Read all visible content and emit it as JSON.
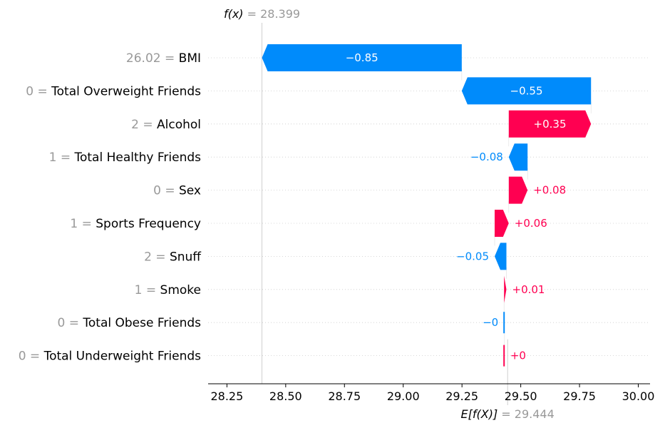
{
  "chart_data": {
    "type": "waterfall",
    "features": [
      {
        "value_label": "26.02",
        "name": "BMI",
        "contribution": -0.85,
        "label": "−0.85"
      },
      {
        "value_label": "0",
        "name": "Total Overweight Friends",
        "contribution": -0.55,
        "label": "−0.55"
      },
      {
        "value_label": "2",
        "name": "Alcohol",
        "contribution": 0.35,
        "label": "+0.35"
      },
      {
        "value_label": "1",
        "name": "Total Healthy Friends",
        "contribution": -0.08,
        "label": "−0.08"
      },
      {
        "value_label": "0",
        "name": "Sex",
        "contribution": 0.08,
        "label": "+0.08"
      },
      {
        "value_label": "1",
        "name": "Sports Frequency",
        "contribution": 0.06,
        "label": "+0.06"
      },
      {
        "value_label": "2",
        "name": "Snuff",
        "contribution": -0.05,
        "label": "−0.05"
      },
      {
        "value_label": "1",
        "name": "Smoke",
        "contribution": 0.01,
        "label": "+0.01"
      },
      {
        "value_label": "0",
        "name": "Total Obese Friends",
        "contribution": -0.002,
        "label": "−0"
      },
      {
        "value_label": "0",
        "name": "Total Underweight Friends",
        "contribution": 0.002,
        "label": "+0"
      }
    ],
    "fx": {
      "prefix": "f(x)",
      "value": 28.399,
      "label": "28.399"
    },
    "base": {
      "prefix": "E[f(X)]",
      "value": 29.444,
      "label": "29.444"
    },
    "xlim": [
      28.17,
      30.05
    ],
    "xticks": [
      28.25,
      28.5,
      28.75,
      29.0,
      29.25,
      29.5,
      29.75,
      30.0
    ],
    "xtick_labels": [
      "28.25",
      "28.50",
      "28.75",
      "29.00",
      "29.25",
      "29.50",
      "29.75",
      "30.00"
    ],
    "colors": {
      "positive": "#ff0051",
      "negative": "#008bfb",
      "muted": "#999999",
      "text": "#000000"
    }
  }
}
